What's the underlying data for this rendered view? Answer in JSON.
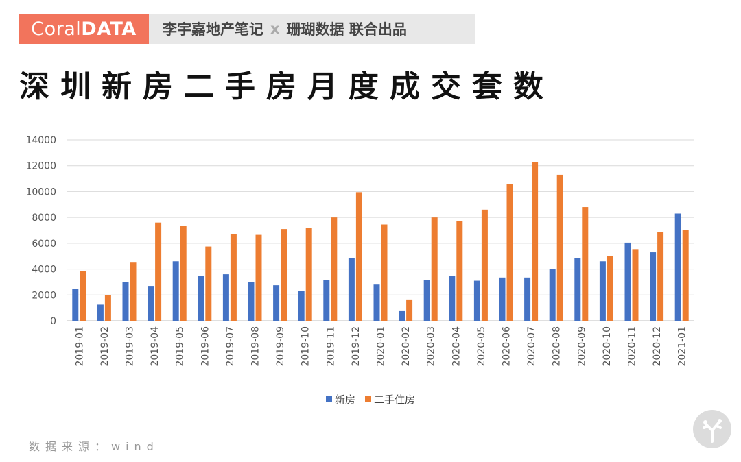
{
  "brand": {
    "logo_light": "Coral",
    "logo_bold": "DATA",
    "tag_left": "李宇嘉地产笔记",
    "tag_x": "x",
    "tag_right": "珊瑚数据 联合出品"
  },
  "title": "深圳新房二手房月度成交套数",
  "source": "数据来源：wind",
  "colors": {
    "series_new": "#4472c4",
    "series_second": "#ed7d31",
    "brand": "#f2745c"
  },
  "chart_data": {
    "type": "bar",
    "title": "",
    "xlabel": "",
    "ylabel": "",
    "ylim": [
      0,
      14000
    ],
    "yticks": [
      0,
      2000,
      4000,
      6000,
      8000,
      10000,
      12000,
      14000
    ],
    "grid": true,
    "legend_position": "bottom",
    "categories": [
      "2019-01",
      "2019-02",
      "2019-03",
      "2019-04",
      "2019-05",
      "2019-06",
      "2019-07",
      "2019-08",
      "2019-09",
      "2019-10",
      "2019-11",
      "2019-12",
      "2020-01",
      "2020-02",
      "2020-03",
      "2020-04",
      "2020-05",
      "2020-06",
      "2020-07",
      "2020-08",
      "2020-09",
      "2020-10",
      "2020-11",
      "2020-12",
      "2021-01"
    ],
    "series": [
      {
        "name": "新房",
        "color": "#4472c4",
        "values": [
          2450,
          1250,
          3000,
          2700,
          4600,
          3500,
          3600,
          3000,
          2750,
          2300,
          3150,
          4850,
          2800,
          800,
          3150,
          3450,
          3100,
          3350,
          3350,
          4000,
          4850,
          4600,
          6050,
          5300,
          8300
        ]
      },
      {
        "name": "二手住房",
        "color": "#ed7d31",
        "values": [
          3850,
          2000,
          4550,
          7600,
          7350,
          5750,
          6700,
          6650,
          7100,
          7200,
          8000,
          9950,
          7450,
          1650,
          8000,
          7700,
          8600,
          10600,
          12300,
          11300,
          8800,
          5000,
          5550,
          6850,
          7000
        ]
      }
    ]
  }
}
